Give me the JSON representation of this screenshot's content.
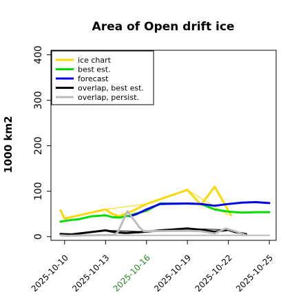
{
  "chart_data": {
    "type": "line",
    "title": "Area of Open drift ice",
    "xlabel": "",
    "ylabel": "1000 km2",
    "ylim": [
      -8,
      410
    ],
    "xlim": [
      0,
      16.5
    ],
    "yticks": [
      0,
      100,
      200,
      300,
      400
    ],
    "xticks": [
      {
        "x": 1,
        "label": "2025-10-10",
        "color": "#000000"
      },
      {
        "x": 4,
        "label": "2025-10-13",
        "color": "#000000"
      },
      {
        "x": 7,
        "label": "2025-10-16",
        "color": "#228B22"
      },
      {
        "x": 10,
        "label": "2025-10-19",
        "color": "#000000"
      },
      {
        "x": 13,
        "label": "2025-10-22",
        "color": "#000000"
      },
      {
        "x": 16,
        "label": "2025-10-25",
        "color": "#000000"
      }
    ],
    "legend_position": "top-left",
    "series": [
      {
        "name": "ice chart",
        "color": "#FFD700",
        "width": 3,
        "x": [
          0.7,
          1,
          4,
          4.5,
          5,
          6,
          7,
          10,
          11,
          12,
          13.2
        ],
        "y": [
          58,
          40,
          60,
          50,
          45,
          57,
          72,
          103,
          70,
          110,
          47
        ]
      },
      {
        "name": "ice chart",
        "color": "#FFD700",
        "width": 1,
        "x": [
          1,
          4,
          7,
          10,
          13
        ],
        "y": [
          40,
          60,
          72,
          103,
          47
        ]
      },
      {
        "name": "best est.",
        "color": "#00DD00",
        "width": 3,
        "x": [
          0.7,
          1.5,
          2,
          3,
          4,
          4.5,
          5,
          5.7,
          6,
          7,
          8,
          10,
          11,
          12,
          13,
          14,
          15,
          16
        ],
        "y": [
          33,
          37,
          38,
          45,
          47,
          43,
          42,
          46,
          49,
          57,
          73,
          73,
          72,
          60,
          55,
          53,
          54,
          54
        ]
      },
      {
        "name": "forecast",
        "color": "#0000EE",
        "width": 3,
        "x": [
          5.8,
          6.3,
          7,
          8,
          10,
          11,
          12,
          13,
          14,
          15,
          16
        ],
        "y": [
          45,
          50,
          60,
          72,
          73,
          72,
          68,
          72,
          75,
          76,
          74
        ]
      },
      {
        "name": "overlap, best est.",
        "color": "#000000",
        "width": 3,
        "x": [
          0.7,
          1.5,
          4,
          4.5,
          5,
          5.5,
          6,
          6.5,
          7,
          8,
          10,
          11,
          12,
          13,
          13.5,
          14.3
        ],
        "y": [
          6,
          5,
          14,
          11,
          9,
          8,
          9,
          10,
          11,
          14,
          18,
          15,
          11,
          15,
          10,
          6
        ]
      },
      {
        "name": "overlap, best est.",
        "color": "#000000",
        "width": 1,
        "x": [
          1.5,
          4,
          7,
          10,
          13,
          14.3
        ],
        "y": [
          5,
          14,
          11,
          18,
          15,
          6
        ]
      },
      {
        "name": "overlap, persist.",
        "color": "#BBBBBB",
        "width": 3,
        "x": [
          0.7,
          1.2,
          4.5,
          4.7,
          4.9,
          5.6,
          6,
          6.5,
          6.8,
          10,
          11,
          12,
          12.8,
          13.5,
          14.3
        ],
        "y": [
          3,
          2,
          4,
          6,
          10,
          56,
          40,
          20,
          12,
          13,
          12,
          7,
          18,
          12,
          3
        ]
      },
      {
        "name": "overlap, persist.",
        "color": "#BBBBBB",
        "width": 2,
        "x": [
          4,
          7,
          10,
          13,
          16
        ],
        "y": [
          3,
          3,
          3,
          3,
          3
        ]
      }
    ],
    "legend": [
      {
        "label": "ice chart",
        "color": "#FFD700"
      },
      {
        "label": "best est.",
        "color": "#00DD00"
      },
      {
        "label": "forecast",
        "color": "#0000EE"
      },
      {
        "label": "overlap, best est.",
        "color": "#000000"
      },
      {
        "label": "overlap, persist.",
        "color": "#BBBBBB"
      }
    ]
  }
}
